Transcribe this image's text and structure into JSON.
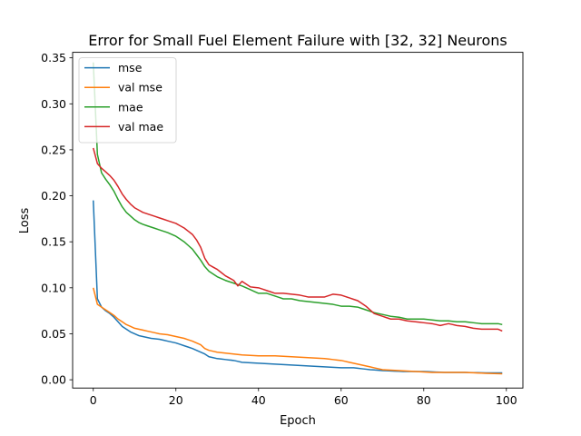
{
  "chart_data": {
    "type": "line",
    "title": "Error for Small Fuel Element Failure with [32, 32] Neurons",
    "xlabel": "Epoch",
    "ylabel": "Loss",
    "xlim": [
      -5,
      104
    ],
    "ylim": [
      -0.009,
      0.356
    ],
    "xticks": [
      0,
      20,
      40,
      60,
      80,
      100
    ],
    "yticks": [
      0.0,
      0.05,
      0.1,
      0.15,
      0.2,
      0.25,
      0.3,
      0.35
    ],
    "grid": false,
    "legend_position": "upper-left",
    "series": [
      {
        "name": "mse",
        "color": "#1f77b4",
        "knots": [
          [
            0,
            0.195
          ],
          [
            1,
            0.088
          ],
          [
            2,
            0.079
          ],
          [
            3,
            0.075
          ],
          [
            4,
            0.072
          ],
          [
            5,
            0.068
          ],
          [
            6,
            0.063
          ],
          [
            7,
            0.058
          ],
          [
            8,
            0.055
          ],
          [
            9,
            0.052
          ],
          [
            10,
            0.05
          ],
          [
            11,
            0.048
          ],
          [
            12,
            0.047
          ],
          [
            14,
            0.045
          ],
          [
            16,
            0.044
          ],
          [
            18,
            0.042
          ],
          [
            20,
            0.04
          ],
          [
            22,
            0.037
          ],
          [
            24,
            0.034
          ],
          [
            26,
            0.03
          ],
          [
            27,
            0.028
          ],
          [
            28,
            0.025
          ],
          [
            30,
            0.023
          ],
          [
            32,
            0.022
          ],
          [
            34,
            0.021
          ],
          [
            36,
            0.019
          ],
          [
            40,
            0.018
          ],
          [
            44,
            0.017
          ],
          [
            48,
            0.016
          ],
          [
            52,
            0.015
          ],
          [
            56,
            0.014
          ],
          [
            60,
            0.013
          ],
          [
            63,
            0.013
          ],
          [
            65,
            0.012
          ],
          [
            67,
            0.011
          ],
          [
            70,
            0.01
          ],
          [
            75,
            0.009
          ],
          [
            80,
            0.009
          ],
          [
            85,
            0.008
          ],
          [
            90,
            0.008
          ],
          [
            95,
            0.0075
          ],
          [
            99,
            0.0075
          ]
        ]
      },
      {
        "name": "val mse",
        "color": "#ff7f0e",
        "knots": [
          [
            0,
            0.1
          ],
          [
            1,
            0.082
          ],
          [
            2,
            0.079
          ],
          [
            3,
            0.076
          ],
          [
            4,
            0.073
          ],
          [
            5,
            0.07
          ],
          [
            6,
            0.066
          ],
          [
            7,
            0.063
          ],
          [
            8,
            0.06
          ],
          [
            9,
            0.058
          ],
          [
            10,
            0.056
          ],
          [
            12,
            0.054
          ],
          [
            14,
            0.052
          ],
          [
            16,
            0.05
          ],
          [
            18,
            0.049
          ],
          [
            20,
            0.047
          ],
          [
            22,
            0.045
          ],
          [
            24,
            0.042
          ],
          [
            26,
            0.038
          ],
          [
            27,
            0.034
          ],
          [
            28,
            0.032
          ],
          [
            30,
            0.03
          ],
          [
            32,
            0.029
          ],
          [
            34,
            0.028
          ],
          [
            36,
            0.027
          ],
          [
            40,
            0.026
          ],
          [
            44,
            0.026
          ],
          [
            48,
            0.025
          ],
          [
            52,
            0.024
          ],
          [
            56,
            0.023
          ],
          [
            58,
            0.022
          ],
          [
            60,
            0.021
          ],
          [
            62,
            0.019
          ],
          [
            64,
            0.017
          ],
          [
            66,
            0.015
          ],
          [
            68,
            0.013
          ],
          [
            70,
            0.011
          ],
          [
            74,
            0.01
          ],
          [
            78,
            0.009
          ],
          [
            82,
            0.008
          ],
          [
            86,
            0.008
          ],
          [
            90,
            0.008
          ],
          [
            95,
            0.007
          ],
          [
            99,
            0.0065
          ]
        ]
      },
      {
        "name": "mae",
        "color": "#2ca02c",
        "knots": [
          [
            0,
            0.345
          ],
          [
            1,
            0.245
          ],
          [
            2,
            0.225
          ],
          [
            3,
            0.218
          ],
          [
            4,
            0.212
          ],
          [
            5,
            0.205
          ],
          [
            6,
            0.196
          ],
          [
            7,
            0.188
          ],
          [
            8,
            0.182
          ],
          [
            9,
            0.178
          ],
          [
            10,
            0.174
          ],
          [
            11,
            0.171
          ],
          [
            12,
            0.169
          ],
          [
            14,
            0.166
          ],
          [
            16,
            0.163
          ],
          [
            18,
            0.16
          ],
          [
            20,
            0.156
          ],
          [
            22,
            0.15
          ],
          [
            24,
            0.142
          ],
          [
            25,
            0.136
          ],
          [
            26,
            0.13
          ],
          [
            27,
            0.123
          ],
          [
            28,
            0.118
          ],
          [
            30,
            0.112
          ],
          [
            32,
            0.108
          ],
          [
            34,
            0.105
          ],
          [
            36,
            0.102
          ],
          [
            38,
            0.098
          ],
          [
            40,
            0.094
          ],
          [
            42,
            0.094
          ],
          [
            44,
            0.091
          ],
          [
            46,
            0.088
          ],
          [
            48,
            0.088
          ],
          [
            50,
            0.086
          ],
          [
            52,
            0.085
          ],
          [
            54,
            0.084
          ],
          [
            56,
            0.083
          ],
          [
            58,
            0.082
          ],
          [
            60,
            0.08
          ],
          [
            62,
            0.08
          ],
          [
            64,
            0.079
          ],
          [
            66,
            0.076
          ],
          [
            68,
            0.073
          ],
          [
            70,
            0.071
          ],
          [
            72,
            0.069
          ],
          [
            74,
            0.068
          ],
          [
            76,
            0.066
          ],
          [
            78,
            0.066
          ],
          [
            80,
            0.066
          ],
          [
            82,
            0.065
          ],
          [
            84,
            0.064
          ],
          [
            86,
            0.064
          ],
          [
            88,
            0.063
          ],
          [
            90,
            0.063
          ],
          [
            92,
            0.062
          ],
          [
            94,
            0.061
          ],
          [
            96,
            0.061
          ],
          [
            98,
            0.061
          ],
          [
            99,
            0.06
          ]
        ]
      },
      {
        "name": "val mae",
        "color": "#d62728",
        "knots": [
          [
            0,
            0.252
          ],
          [
            1,
            0.235
          ],
          [
            2,
            0.23
          ],
          [
            3,
            0.226
          ],
          [
            4,
            0.222
          ],
          [
            5,
            0.217
          ],
          [
            6,
            0.21
          ],
          [
            7,
            0.202
          ],
          [
            8,
            0.196
          ],
          [
            9,
            0.191
          ],
          [
            10,
            0.187
          ],
          [
            12,
            0.182
          ],
          [
            14,
            0.179
          ],
          [
            16,
            0.176
          ],
          [
            18,
            0.173
          ],
          [
            20,
            0.17
          ],
          [
            22,
            0.165
          ],
          [
            24,
            0.158
          ],
          [
            25,
            0.152
          ],
          [
            26,
            0.144
          ],
          [
            27,
            0.132
          ],
          [
            28,
            0.125
          ],
          [
            30,
            0.12
          ],
          [
            32,
            0.113
          ],
          [
            34,
            0.108
          ],
          [
            35,
            0.102
          ],
          [
            36,
            0.107
          ],
          [
            38,
            0.101
          ],
          [
            40,
            0.1
          ],
          [
            42,
            0.097
          ],
          [
            44,
            0.094
          ],
          [
            46,
            0.094
          ],
          [
            48,
            0.093
          ],
          [
            50,
            0.092
          ],
          [
            52,
            0.09
          ],
          [
            54,
            0.09
          ],
          [
            56,
            0.09
          ],
          [
            58,
            0.093
          ],
          [
            60,
            0.092
          ],
          [
            62,
            0.089
          ],
          [
            64,
            0.086
          ],
          [
            66,
            0.08
          ],
          [
            68,
            0.072
          ],
          [
            70,
            0.069
          ],
          [
            72,
            0.066
          ],
          [
            74,
            0.066
          ],
          [
            76,
            0.064
          ],
          [
            78,
            0.063
          ],
          [
            80,
            0.062
          ],
          [
            82,
            0.061
          ],
          [
            84,
            0.059
          ],
          [
            86,
            0.061
          ],
          [
            88,
            0.059
          ],
          [
            90,
            0.058
          ],
          [
            92,
            0.056
          ],
          [
            94,
            0.055
          ],
          [
            96,
            0.055
          ],
          [
            98,
            0.055
          ],
          [
            99,
            0.053
          ]
        ]
      }
    ]
  }
}
